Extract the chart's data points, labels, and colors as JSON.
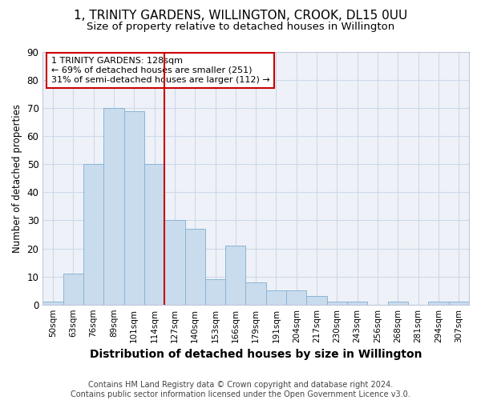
{
  "title": "1, TRINITY GARDENS, WILLINGTON, CROOK, DL15 0UU",
  "subtitle": "Size of property relative to detached houses in Willington",
  "xlabel": "Distribution of detached houses by size in Willington",
  "ylabel": "Number of detached properties",
  "categories": [
    "50sqm",
    "63sqm",
    "76sqm",
    "89sqm",
    "101sqm",
    "114sqm",
    "127sqm",
    "140sqm",
    "153sqm",
    "166sqm",
    "179sqm",
    "191sqm",
    "204sqm",
    "217sqm",
    "230sqm",
    "243sqm",
    "256sqm",
    "268sqm",
    "281sqm",
    "294sqm",
    "307sqm"
  ],
  "values": [
    1,
    11,
    50,
    70,
    69,
    50,
    30,
    27,
    9,
    21,
    8,
    5,
    5,
    3,
    1,
    1,
    0,
    1,
    0,
    1,
    1
  ],
  "bar_color": "#c9dced",
  "bar_edge_color": "#8ab4d4",
  "grid_color": "#cdd8e8",
  "bg_color": "#eef2f8",
  "vline_x": 5.5,
  "vline_color": "#cc0000",
  "annotation_text": "1 TRINITY GARDENS: 128sqm\n← 69% of detached houses are smaller (251)\n31% of semi-detached houses are larger (112) →",
  "annotation_box_color": "#ffffff",
  "annotation_box_edge": "#cc0000",
  "footer": "Contains HM Land Registry data © Crown copyright and database right 2024.\nContains public sector information licensed under the Open Government Licence v3.0.",
  "ylim": [
    0,
    90
  ],
  "yticks": [
    0,
    10,
    20,
    30,
    40,
    50,
    60,
    70,
    80,
    90
  ]
}
